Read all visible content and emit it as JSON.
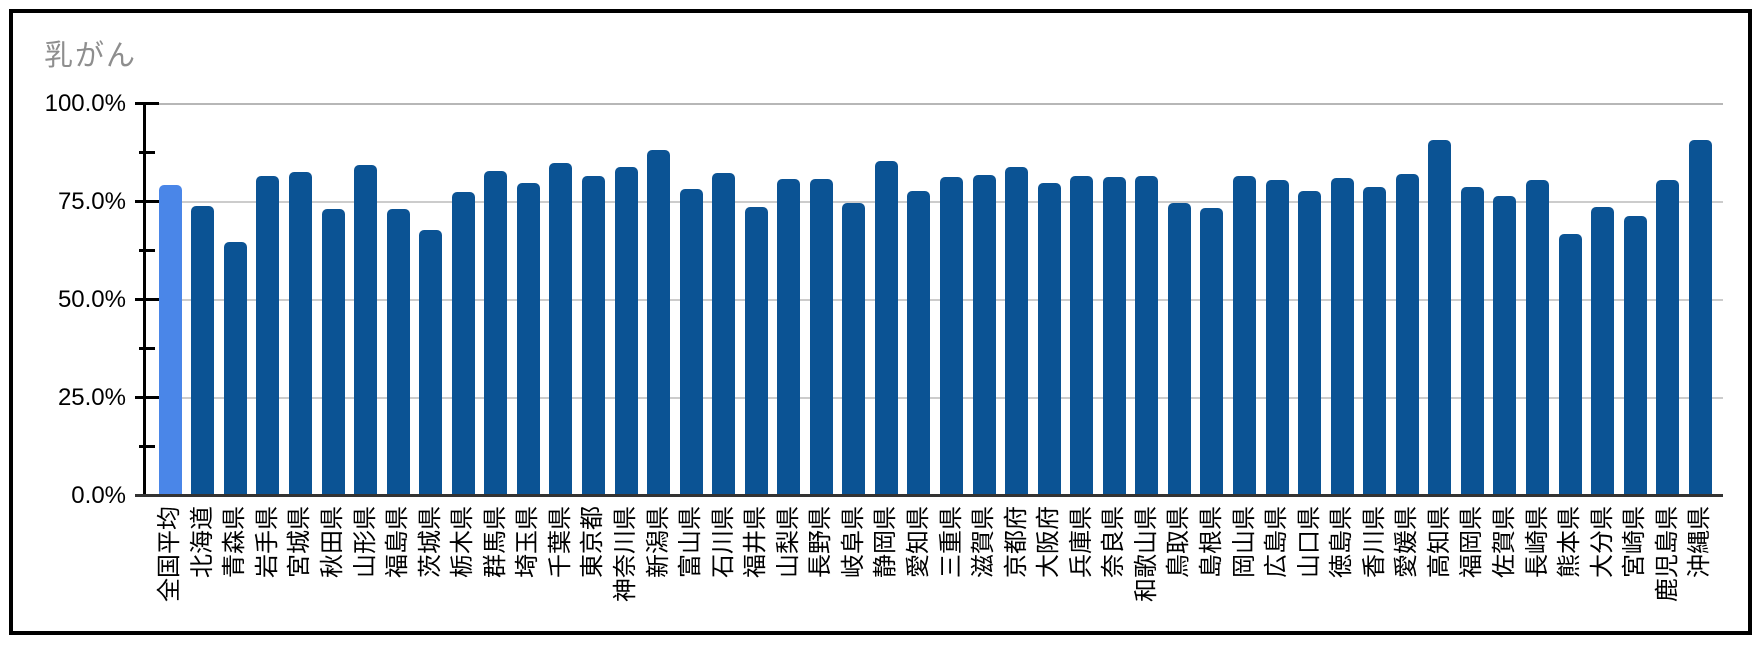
{
  "frame": {
    "border_color": "#000000",
    "background": "#ffffff"
  },
  "chart_data": {
    "type": "bar",
    "title": "乳がん",
    "title_color": "#8e8e8e",
    "categories": [
      "全国平均",
      "北海道",
      "青森県",
      "岩手県",
      "宮城県",
      "秋田県",
      "山形県",
      "福島県",
      "茨城県",
      "栃木県",
      "群馬県",
      "埼玉県",
      "千葉県",
      "東京都",
      "神奈川県",
      "新潟県",
      "富山県",
      "石川県",
      "福井県",
      "山梨県",
      "長野県",
      "岐阜県",
      "静岡県",
      "愛知県",
      "三重県",
      "滋賀県",
      "京都府",
      "大阪府",
      "兵庫県",
      "奈良県",
      "和歌山県",
      "鳥取県",
      "島根県",
      "岡山県",
      "広島県",
      "山口県",
      "徳島県",
      "香川県",
      "愛媛県",
      "高知県",
      "福岡県",
      "佐賀県",
      "長崎県",
      "熊本県",
      "大分県",
      "宮崎県",
      "鹿児島県",
      "沖縄県"
    ],
    "values": [
      79.1,
      73.8,
      64.6,
      81.6,
      82.4,
      73.2,
      84.4,
      73.2,
      67.8,
      77.4,
      82.9,
      79.8,
      84.9,
      81.4,
      83.8,
      88.1,
      78.2,
      82.3,
      73.7,
      80.8,
      80.8,
      74.7,
      85.4,
      77.6,
      81.2,
      81.8,
      83.7,
      79.8,
      81.6,
      81.2,
      81.4,
      74.7,
      73.3,
      81.4,
      80.5,
      77.8,
      80.9,
      78.8,
      82.1,
      90.7,
      78.8,
      76.3,
      80.4,
      66.6,
      73.7,
      71.4,
      80.4,
      90.6
    ],
    "xlabel": "",
    "ylabel": "",
    "ylim": [
      0,
      100
    ],
    "yticks": [
      {
        "label": "100.0%",
        "value": 100
      },
      {
        "label": "75.0%",
        "value": 75
      },
      {
        "label": "50.0%",
        "value": 50
      },
      {
        "label": "25.0%",
        "value": 25
      },
      {
        "label": "0.0%",
        "value": 0
      }
    ],
    "minor_ticks": [
      87.5,
      62.5,
      37.5,
      12.5
    ],
    "grid": "horizontal-major",
    "legend_position": "none",
    "bar_color_default": "#0b5394",
    "highlight_category": "全国平均",
    "highlight_index": 0,
    "bar_color_highlight": "#4a86e8",
    "gridline_color": "#cccccc",
    "axis_color": "#000000"
  }
}
